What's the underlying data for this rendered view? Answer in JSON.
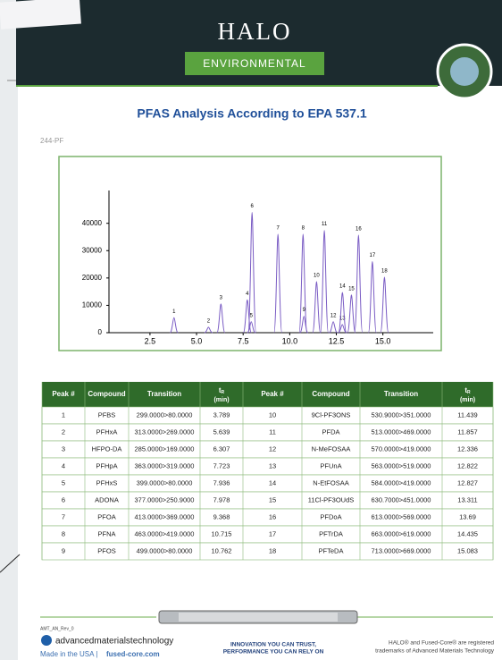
{
  "header": {
    "brand": "HALO",
    "section": "ENVIRONMENTAL",
    "title": "PFAS Analysis According to EPA 537.1",
    "code": "244-PF"
  },
  "chart_data": {
    "type": "chromatogram",
    "color": "#7a5cc4",
    "x": [
      3.789,
      5.639,
      6.307,
      7.723,
      7.936,
      7.978,
      9.368,
      10.715,
      10.762,
      11.439,
      11.857,
      12.336,
      12.822,
      12.827,
      13.311,
      13.69,
      14.435,
      15.083
    ],
    "values": [
      5500,
      2000,
      10500,
      12000,
      4000,
      44000,
      36000,
      36000,
      6000,
      18700,
      37400,
      4000,
      3000,
      14700,
      13800,
      35700,
      26000,
      20300
    ],
    "peak_labels": [
      "1",
      "2",
      "3",
      "4",
      "5",
      "6",
      "7",
      "8",
      "9",
      "10",
      "11",
      "12",
      "13",
      "14",
      "15",
      "16",
      "17",
      "18"
    ],
    "xlim": [
      0.3,
      17.7
    ],
    "xticks": [
      2.5,
      {
        "value": 5,
        "label": "5.0"
      },
      7.5,
      {
        "value": 10,
        "label": "10.0"
      },
      12.5,
      {
        "value": 15,
        "label": "15.0"
      }
    ],
    "ylim": [
      0,
      52000
    ],
    "yticks": [
      0,
      10000,
      20000,
      30000,
      40000
    ]
  },
  "table": {
    "headers": [
      "Peak #",
      "Compound",
      "Transition",
      {
        "main": "t",
        "sub": "R",
        "unit": "(min)"
      },
      "Peak #",
      "Compound",
      "Transition",
      {
        "main": "t",
        "sub": "R",
        "unit": "(min)"
      }
    ],
    "rows": [
      [
        1,
        "PFBS",
        "299.0000>80.0000",
        3.789,
        10,
        "9Cl-PF3ONS",
        "530.9000>351.0000",
        11.439
      ],
      [
        2,
        "PFHxA",
        "313.0000>269.0000",
        5.639,
        11,
        "PFDA",
        "513.0000>469.0000",
        11.857
      ],
      [
        3,
        "HFPO-DA",
        "285.0000>169.0000",
        6.307,
        12,
        "N-MeFOSAA",
        "570.0000>419.0000",
        12.336
      ],
      [
        4,
        "PFHpA",
        "363.0000>319.0000",
        7.723,
        13,
        "PFUnA",
        "563.0000>519.0000",
        12.822
      ],
      [
        5,
        "PFHxS",
        "399.0000>80.0000",
        7.936,
        14,
        "N-EtFOSAA",
        "584.0000>419.0000",
        12.827
      ],
      [
        6,
        "ADONA",
        "377.0000>250.9000",
        7.978,
        15,
        "11Cl-PF3OUdS",
        "630.7000>451.0000",
        13.311
      ],
      [
        7,
        "PFOA",
        "413.0000>369.0000",
        9.368,
        16,
        "PFDoA",
        "613.0000>569.0000",
        13.69
      ],
      [
        8,
        "PFNA",
        "463.0000>419.0000",
        10.715,
        17,
        "PFTrDA",
        "663.0000>619.0000",
        14.435
      ],
      [
        9,
        "PFOS",
        "499.0000>80.0000",
        10.762,
        18,
        "PFTeDA",
        "713.0000>669.0000",
        15.083
      ]
    ]
  },
  "footer": {
    "rev": "AMT_AN_Rev_0",
    "company": "advancedmaterialstechnology",
    "made": "Made in the USA |",
    "site": "fused-core.com",
    "slogan": [
      "INNOVATION YOU CAN TRUST,",
      "PERFORMANCE YOU CAN RELY ON"
    ],
    "trademark": [
      "HALO® and Fused-Core® are registered",
      "trademarks of Advanced Materials Technology"
    ]
  }
}
